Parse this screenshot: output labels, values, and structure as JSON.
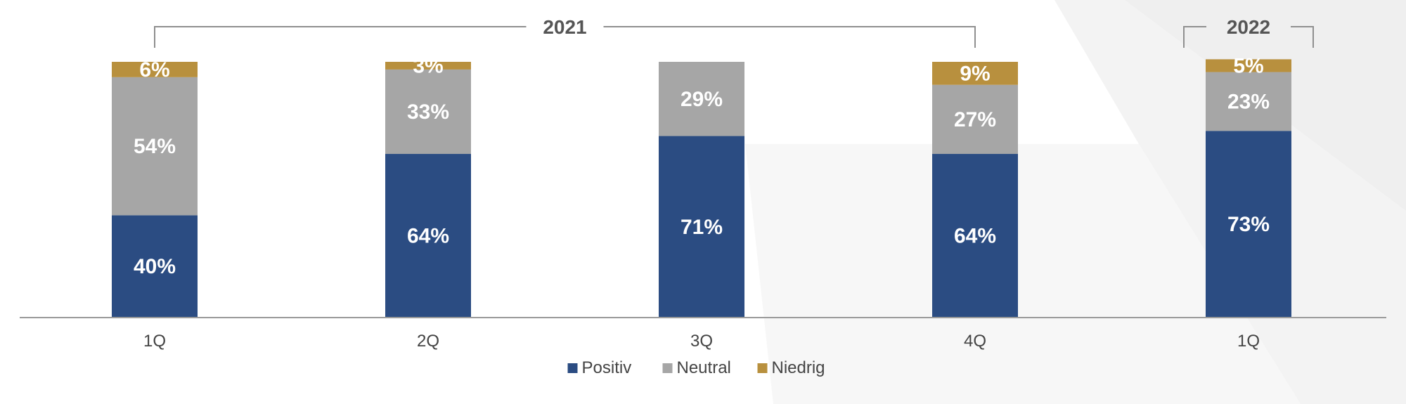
{
  "chart_data": {
    "type": "bar",
    "stacked": true,
    "categories": [
      "1Q",
      "2Q",
      "3Q",
      "4Q",
      "1Q"
    ],
    "groups": [
      {
        "label": "2021",
        "categories": [
          0,
          3
        ]
      },
      {
        "label": "2022",
        "categories": [
          4,
          4
        ]
      }
    ],
    "series": [
      {
        "name": "Positiv",
        "color": "#2b4c82",
        "values": [
          40,
          64,
          71,
          64,
          73
        ],
        "labels": [
          "40%",
          "64%",
          "71%",
          "64%",
          "73%"
        ]
      },
      {
        "name": "Neutral",
        "color": "#a6a6a6",
        "values": [
          54,
          33,
          29,
          27,
          23
        ],
        "labels": [
          "54%",
          "33%",
          "29%",
          "27%",
          "23%"
        ]
      },
      {
        "name": "Niedrig",
        "color": "#b8903e",
        "values": [
          6,
          3,
          0,
          9,
          5
        ],
        "labels": [
          "6%",
          "3%",
          "",
          "9%",
          "5%"
        ]
      }
    ],
    "ylim": [
      0,
      100
    ],
    "legend": "bottom-center",
    "grid": false,
    "axis_color": "#9a9a9a"
  }
}
